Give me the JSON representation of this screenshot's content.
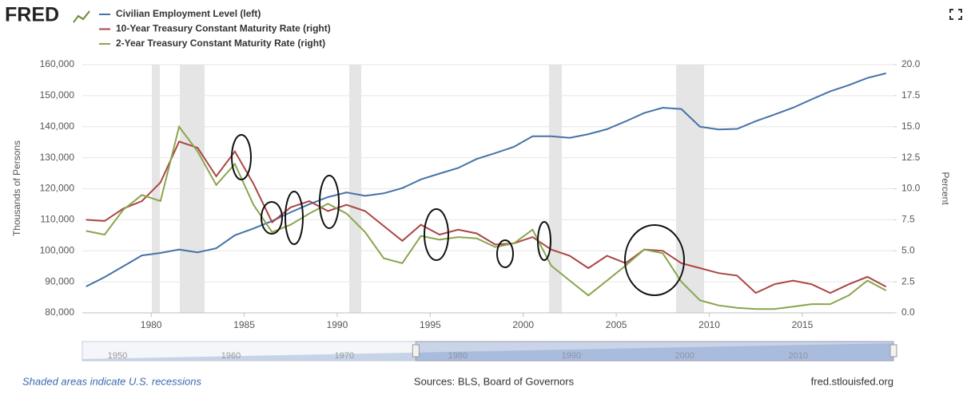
{
  "header": {
    "logo": "FRED"
  },
  "chart_data": {
    "type": "line",
    "x": [
      1976.5,
      1977.5,
      1978.5,
      1979.5,
      1980.5,
      1981.5,
      1982.5,
      1983.5,
      1984.5,
      1985.5,
      1986.5,
      1987.5,
      1988.5,
      1989.5,
      1990.5,
      1991.5,
      1992.5,
      1993.5,
      1994.5,
      1995.5,
      1996.5,
      1997.5,
      1998.5,
      1999.5,
      2000.5,
      2001.5,
      2002.5,
      2003.5,
      2004.5,
      2005.5,
      2006.5,
      2007.5,
      2008.5,
      2009.5,
      2010.5,
      2011.5,
      2012.5,
      2013.5,
      2014.5,
      2015.5,
      2016.5,
      2017.5,
      2018.5,
      2019.5
    ],
    "series": [
      {
        "name": "Civilian Employment Level (left)",
        "color": "#4572a7",
        "axis": "y",
        "values": [
          88500,
          91500,
          95000,
          98500,
          99300,
          100400,
          99500,
          100800,
          105000,
          107200,
          109600,
          112400,
          115000,
          117300,
          118800,
          117700,
          118500,
          120200,
          123000,
          124900,
          126700,
          129600,
          131500,
          133500,
          136900,
          136900,
          136400,
          137600,
          139200,
          141700,
          144400,
          146100,
          145700,
          140000,
          139100,
          139300,
          141800,
          143900,
          146100,
          148800,
          151400,
          153400,
          155700,
          157200
        ]
      },
      {
        "name": "10-Year Treasury Constant Maturity Rate (right)",
        "color": "#aa4643",
        "axis": "y2",
        "values": [
          7.5,
          7.4,
          8.4,
          9.0,
          10.5,
          13.8,
          13.3,
          11.0,
          13.0,
          10.4,
          7.3,
          8.5,
          9.0,
          8.2,
          8.7,
          8.2,
          7.0,
          5.8,
          7.1,
          6.3,
          6.7,
          6.4,
          5.5,
          5.6,
          6.1,
          5.1,
          4.6,
          3.6,
          4.6,
          4.0,
          5.1,
          5.0,
          4.0,
          3.6,
          3.2,
          3.0,
          1.6,
          2.3,
          2.6,
          2.3,
          1.6,
          2.3,
          2.9,
          2.1
        ]
      },
      {
        "name": "2-Year Treasury Constant Maturity Rate (right)",
        "color": "#89a54e",
        "axis": "y2",
        "values": [
          6.6,
          6.3,
          8.3,
          9.5,
          9.0,
          15.0,
          13.0,
          10.3,
          12.0,
          8.7,
          6.5,
          7.1,
          8.0,
          8.8,
          8.0,
          6.5,
          4.4,
          4.0,
          6.2,
          5.9,
          6.1,
          6.0,
          5.3,
          5.6,
          6.7,
          3.8,
          2.6,
          1.4,
          2.6,
          3.8,
          5.1,
          4.8,
          2.5,
          1.0,
          0.6,
          0.4,
          0.3,
          0.3,
          0.5,
          0.7,
          0.7,
          1.4,
          2.6,
          1.8
        ]
      }
    ],
    "xlim": [
      1976.3,
      2019.9
    ],
    "xticks": [
      1980,
      1985,
      1990,
      1995,
      2000,
      2005,
      2010,
      2015
    ],
    "ylim": [
      80000,
      160000
    ],
    "yticks": [
      {
        "value": 80000,
        "label": "80,000"
      },
      {
        "value": 90000,
        "label": "90,000"
      },
      {
        "value": 100000,
        "label": "100,000"
      },
      {
        "value": 110000,
        "label": "110,000"
      },
      {
        "value": 120000,
        "label": "120,000"
      },
      {
        "value": 130000,
        "label": "130,000"
      },
      {
        "value": 140000,
        "label": "140,000"
      },
      {
        "value": 150000,
        "label": "150,000"
      },
      {
        "value": 160000,
        "label": "160,000"
      }
    ],
    "y2lim": [
      0,
      20
    ],
    "y2ticks": [
      {
        "value": 0,
        "label": "0.0"
      },
      2.5,
      {
        "value": 5,
        "label": "5.0"
      },
      7.5,
      {
        "value": 10,
        "label": "10.0"
      },
      12.5,
      {
        "value": 15,
        "label": "15.0"
      },
      17.5,
      {
        "value": 20,
        "label": "20.0"
      }
    ],
    "ylabel": "Thousands of Persons",
    "y2label": "Percent",
    "grid": true,
    "navigator": {
      "xlim": [
        1946.9,
        2018.4
      ],
      "xticks": [
        1950,
        1960,
        1970,
        1980,
        1990,
        2000,
        2010
      ]
    }
  },
  "footer": {
    "note": "Shaded areas indicate U.S. recessions",
    "sources": "Sources: BLS, Board of Governors",
    "site": "fred.stlouisfed.org"
  }
}
